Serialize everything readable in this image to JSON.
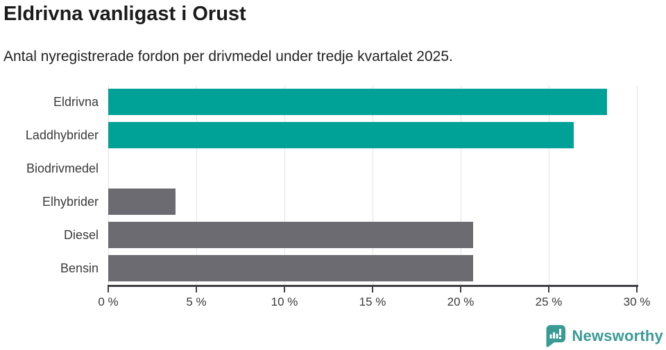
{
  "title": "Eldrivna vanligast i Orust",
  "subtitle": "Antal nyregistrerade fordon per drivmedel under tredje kvartalet 2025.",
  "branding": {
    "logo_text": "Newsworthy",
    "logo_icon": "bar-chart-speech-bubble-icon",
    "logo_color": "#3a9a94"
  },
  "colors": {
    "highlight_bar": "#00a196",
    "default_bar": "#6b6b71",
    "gridline": "#e3e3e3",
    "axis": "#3f3f44",
    "title_text": "#1b1b1b",
    "label_text": "#3a3a3a"
  },
  "chart_data": {
    "type": "bar",
    "orientation": "horizontal",
    "title": "Eldrivna vanligast i Orust",
    "subtitle": "Antal nyregistrerade fordon per drivmedel under tredje kvartalet 2025.",
    "categories": [
      "Eldrivna",
      "Laddhybrider",
      "Biodrivmedel",
      "Elhybrider",
      "Diesel",
      "Bensin"
    ],
    "values": [
      28.3,
      26.4,
      0,
      3.8,
      20.7,
      20.7
    ],
    "unit": "%",
    "bar_colors": [
      "#00a196",
      "#00a196",
      "#6b6b71",
      "#6b6b71",
      "#6b6b71",
      "#6b6b71"
    ],
    "xlabel": "",
    "ylabel": "",
    "xlim": [
      0,
      30
    ],
    "x_ticks": [
      0,
      5,
      10,
      15,
      20,
      25,
      30
    ],
    "x_tick_labels": [
      "0 %",
      "5 %",
      "10 %",
      "15 %",
      "20 %",
      "25 %",
      "30 %"
    ],
    "grid": true,
    "legend": false
  }
}
